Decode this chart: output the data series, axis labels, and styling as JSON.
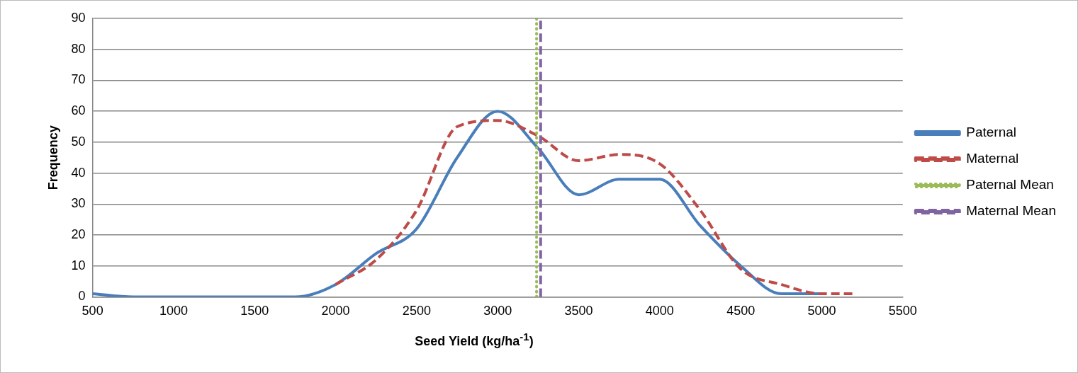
{
  "chart_data": {
    "type": "line",
    "xlabel": "Seed Yield (kg/ha$^{-1}$)",
    "ylabel": "Frequency",
    "xlim": [
      500,
      5500
    ],
    "xticks": [
      500,
      1000,
      1500,
      2000,
      2500,
      3000,
      3500,
      4000,
      4500,
      5000,
      5500
    ],
    "ylim": [
      0,
      90
    ],
    "yticks": [
      0,
      10,
      20,
      30,
      40,
      50,
      60,
      70,
      80,
      90
    ],
    "grid": "y",
    "legend": "right",
    "marker": "none",
    "series": [
      {
        "name": "Paternal",
        "color": "#4a7ebb",
        "line_style": "solid",
        "x": [
          500,
          750,
          1000,
          1250,
          1500,
          1750,
          2000,
          2250,
          2500,
          2750,
          3000,
          3250,
          3500,
          3750,
          4000,
          4250,
          4500,
          4750,
          5000
        ],
        "values": [
          1,
          0,
          0,
          0,
          0,
          0,
          4,
          14,
          22,
          45,
          60,
          48,
          33,
          38,
          38,
          23,
          10,
          1,
          1
        ]
      },
      {
        "name": "Maternal",
        "color": "#be4b48",
        "line_style": "dashed",
        "x": [
          2000,
          2250,
          2500,
          2750,
          3000,
          3250,
          3500,
          3750,
          4000,
          4250,
          4500,
          4750,
          5000,
          5200
        ],
        "values": [
          4,
          12,
          28,
          55,
          57,
          52,
          44,
          46,
          43,
          28,
          9,
          4,
          1,
          1
        ]
      },
      {
        "name": "Paternal Mean",
        "color": "#9bbb59",
        "line_style": "dotted",
        "x": [
          3240,
          3240
        ],
        "values": [
          0,
          90
        ]
      },
      {
        "name": "Maternal Mean",
        "color": "#8064a2",
        "line_style": "dashed",
        "x": [
          3265,
          3265
        ],
        "values": [
          0,
          90
        ]
      }
    ]
  }
}
